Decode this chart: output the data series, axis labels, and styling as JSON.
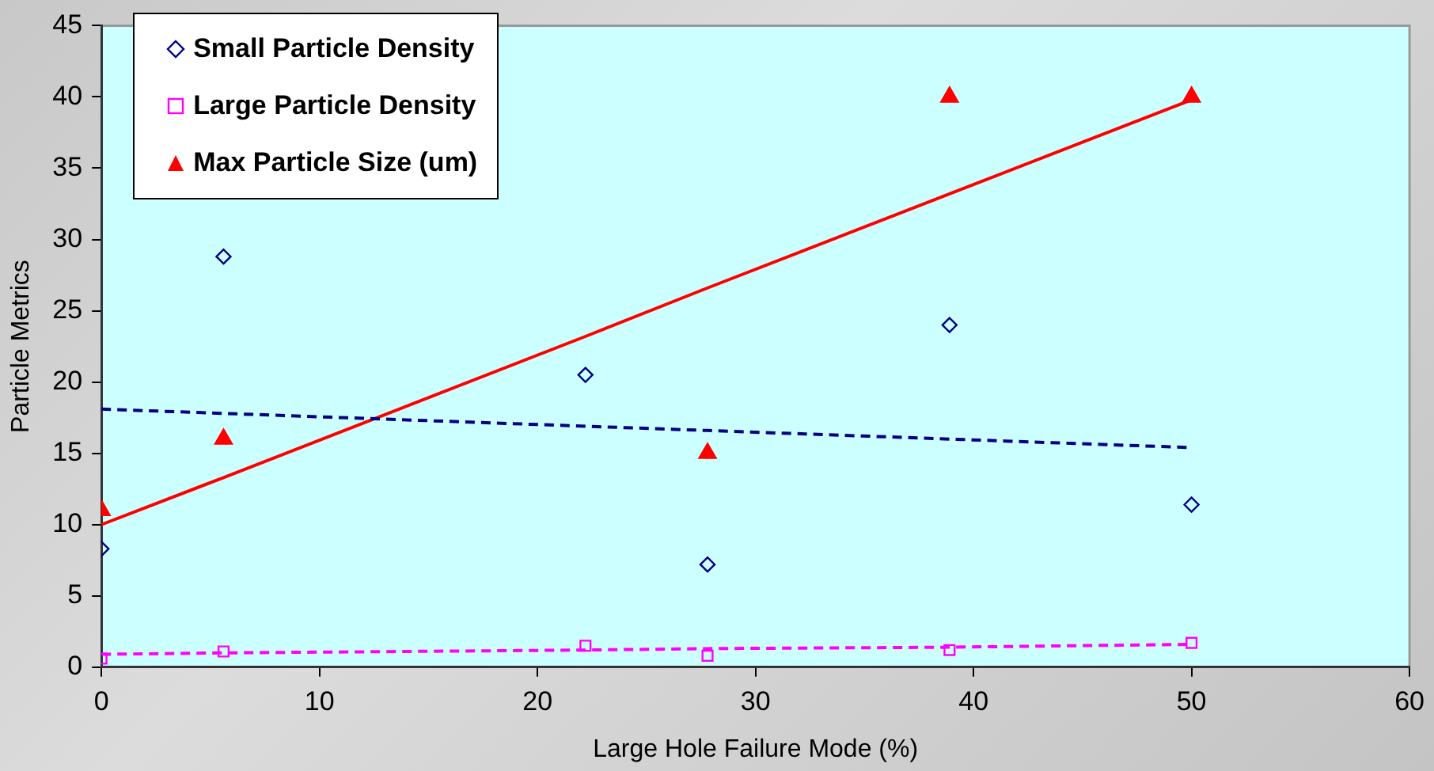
{
  "chart_data": {
    "type": "scatter",
    "xlabel": "Large Hole Failure Mode (%)",
    "ylabel": "Particle Metrics",
    "x": [
      0,
      5.6,
      22.2,
      27.8,
      38.9,
      50
    ],
    "series": [
      {
        "name": "Small Particle Density",
        "color": "#000080",
        "marker": "diamond",
        "values": [
          8.3,
          28.8,
          20.5,
          7.2,
          24.0,
          11.4
        ]
      },
      {
        "name": "Large Particle Density",
        "color": "#ff00ff",
        "marker": "square",
        "values": [
          0.6,
          1.1,
          1.5,
          0.8,
          1.2,
          1.7
        ]
      },
      {
        "name": "Max Particle Size (um)",
        "color": "#ff0000",
        "marker": "triangle",
        "values": [
          11,
          16,
          null,
          15,
          40,
          40
        ]
      },
      {
        "type": "line",
        "color": "#000080",
        "line_style": "dashed",
        "values": [
          18.1,
          17.8,
          16.9,
          16.6,
          16.0,
          15.4
        ]
      },
      {
        "type": "line",
        "color": "#ff00ff",
        "line_style": "dashed",
        "values": [
          0.9,
          1.0,
          1.2,
          1.3,
          1.4,
          1.6
        ]
      },
      {
        "type": "line",
        "color": "#ff0000",
        "line_style": "solid",
        "values": [
          10,
          13.3,
          23.2,
          26.6,
          33.2,
          39.8
        ]
      }
    ],
    "xlim": [
      0,
      60
    ],
    "xticks": [
      0,
      10,
      20,
      30,
      40,
      50,
      60
    ],
    "ylim": [
      0,
      45
    ],
    "yticks": [
      0,
      5,
      10,
      15,
      20,
      25,
      30,
      35,
      40,
      45
    ],
    "grid": false,
    "legend": "top left"
  }
}
